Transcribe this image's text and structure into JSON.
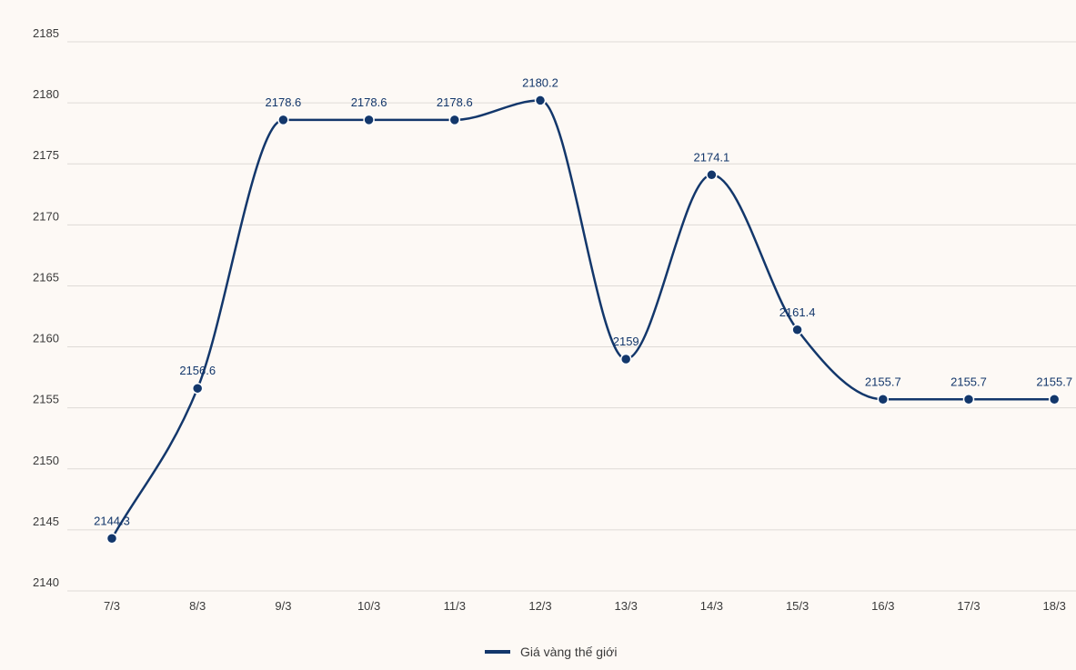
{
  "chart_data": {
    "type": "line",
    "title": "",
    "xlabel": "",
    "ylabel": "",
    "categories": [
      "7/3",
      "8/3",
      "9/3",
      "10/3",
      "11/3",
      "12/3",
      "13/3",
      "14/3",
      "15/3",
      "16/3",
      "17/3",
      "18/3"
    ],
    "series": [
      {
        "name": "Giá vàng thế giới",
        "values": [
          2144.3,
          2156.6,
          2178.6,
          2178.6,
          2178.6,
          2180.2,
          2159,
          2174.1,
          2161.4,
          2155.7,
          2155.7,
          2155.7
        ],
        "labels": [
          "2144.3",
          "2156.6",
          "2178.6",
          "2178.6",
          "2178.6",
          "2180.2",
          "2159",
          "2174.1",
          "2161.4",
          "2155.7",
          "2155.7",
          "2155.7"
        ],
        "color": "#13376b"
      }
    ],
    "ylim": [
      2140,
      2185
    ],
    "yticks": [
      "2140",
      "2145",
      "2150",
      "2155",
      "2160",
      "2165",
      "2170",
      "2175",
      "2180",
      "2185"
    ],
    "grid": true,
    "legend_position": "bottom-center"
  }
}
